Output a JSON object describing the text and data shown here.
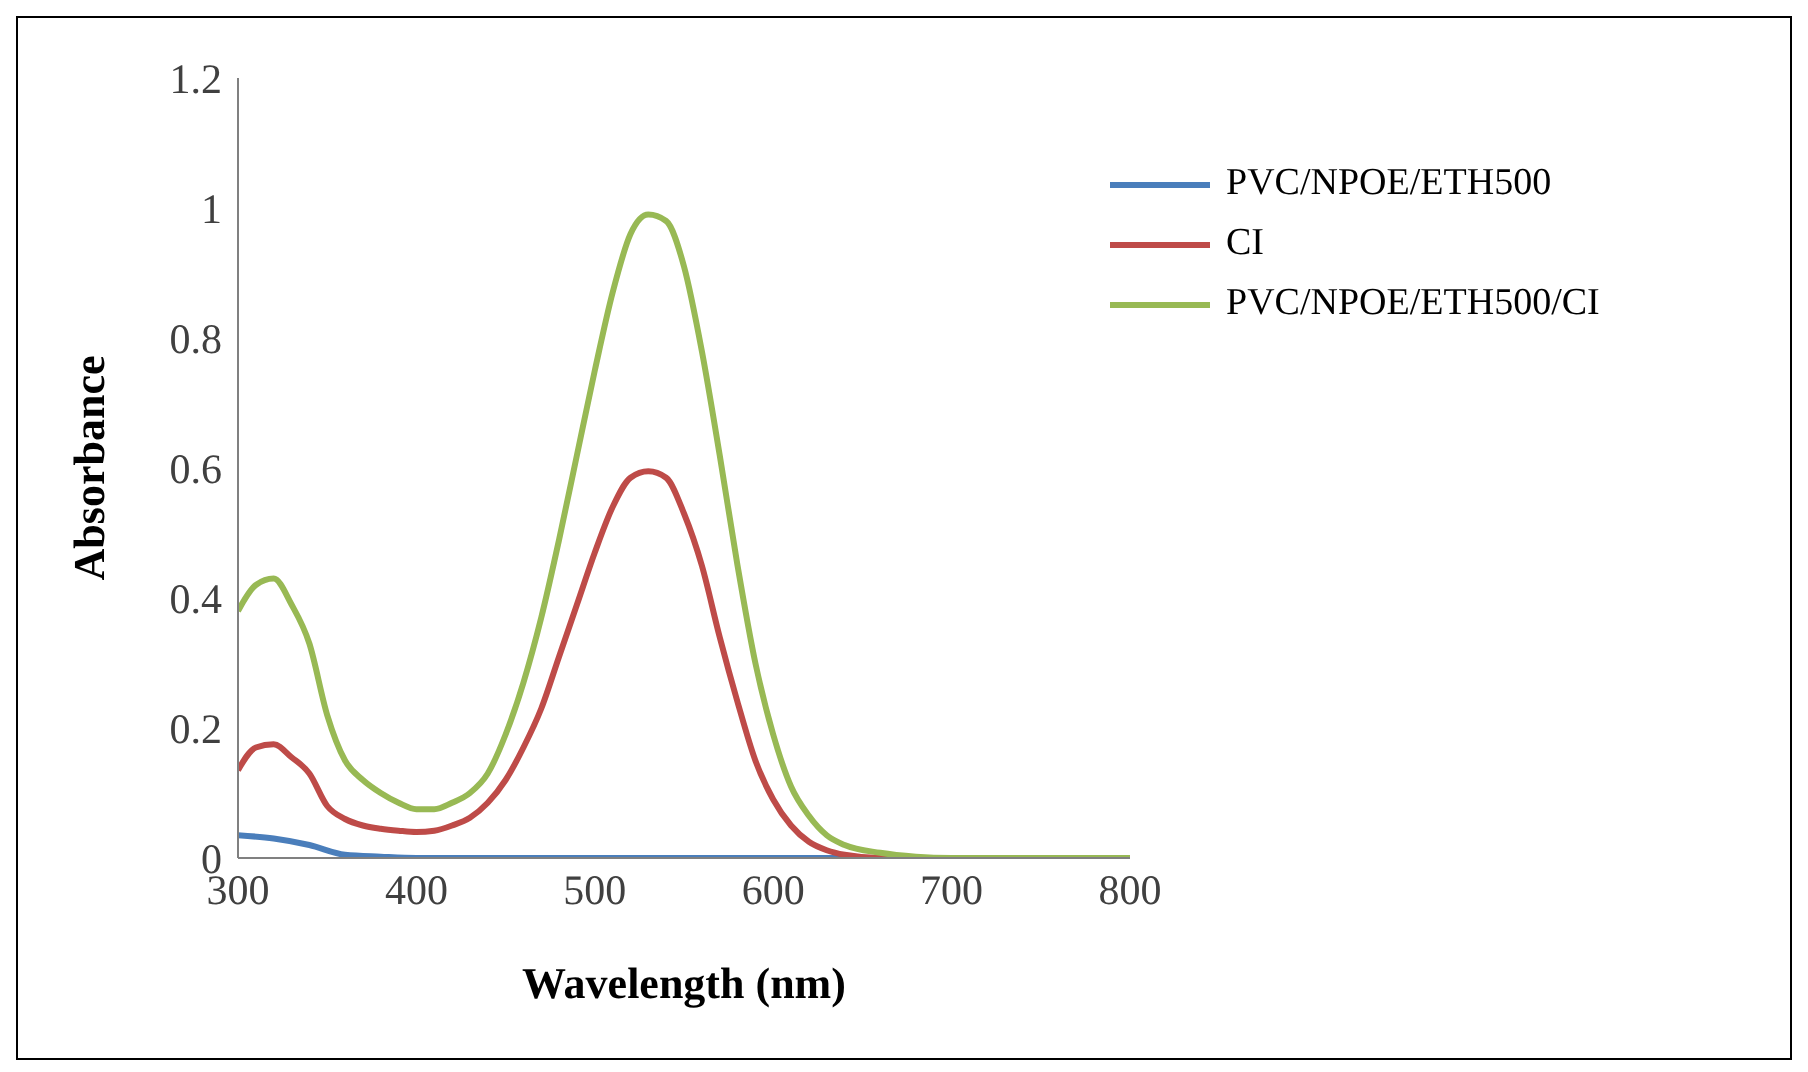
{
  "chart_data": {
    "type": "line",
    "xlabel": "Wavelength (nm)",
    "ylabel": "Absorbance",
    "xlim": [
      300,
      800
    ],
    "xticks": [
      300,
      400,
      500,
      600,
      700,
      800
    ],
    "ylim": [
      0,
      1.2
    ],
    "yticks": [
      0,
      0.2,
      0.4,
      0.6,
      0.8,
      1,
      1.2
    ],
    "grid": false,
    "legend": "top right",
    "marker": "none",
    "line_style": "solid",
    "series": [
      {
        "name": "PVC/NPOE/ETH500",
        "color": "#4a7ebb",
        "x": [
          300,
          320,
          340,
          360,
          380,
          400,
          500,
          600,
          700,
          800
        ],
        "values": [
          0.035,
          0.03,
          0.02,
          0.005,
          0.002,
          0,
          0,
          0,
          0,
          0
        ]
      },
      {
        "name": "CI",
        "color": "#be4b48",
        "x": [
          300,
          310,
          320,
          330,
          340,
          350,
          360,
          370,
          380,
          390,
          400,
          410,
          420,
          430,
          440,
          450,
          460,
          470,
          480,
          490,
          500,
          510,
          520,
          530,
          540,
          550,
          560,
          570,
          580,
          590,
          600,
          610,
          620,
          630,
          640,
          660,
          700,
          800
        ],
        "values": [
          0.135,
          0.17,
          0.175,
          0.155,
          0.13,
          0.08,
          0.06,
          0.05,
          0.045,
          0.042,
          0.04,
          0.042,
          0.05,
          0.062,
          0.085,
          0.12,
          0.17,
          0.23,
          0.31,
          0.39,
          0.47,
          0.54,
          0.585,
          0.595,
          0.585,
          0.53,
          0.45,
          0.34,
          0.24,
          0.15,
          0.09,
          0.05,
          0.025,
          0.012,
          0.005,
          0,
          0,
          0
        ]
      },
      {
        "name": "PVC/NPOE/ETH500/CI",
        "color": "#98b954",
        "x": [
          300,
          310,
          320,
          330,
          340,
          350,
          360,
          370,
          380,
          390,
          400,
          410,
          420,
          430,
          440,
          450,
          460,
          470,
          480,
          490,
          500,
          510,
          520,
          530,
          540,
          550,
          560,
          570,
          580,
          590,
          600,
          610,
          620,
          630,
          640,
          660,
          680,
          700,
          800
        ],
        "values": [
          0.38,
          0.42,
          0.43,
          0.39,
          0.33,
          0.22,
          0.15,
          0.12,
          0.1,
          0.085,
          0.075,
          0.075,
          0.085,
          0.1,
          0.13,
          0.19,
          0.27,
          0.37,
          0.49,
          0.62,
          0.75,
          0.87,
          0.96,
          0.99,
          0.98,
          0.91,
          0.78,
          0.62,
          0.45,
          0.3,
          0.19,
          0.11,
          0.065,
          0.035,
          0.02,
          0.008,
          0.002,
          0,
          0
        ]
      }
    ]
  }
}
